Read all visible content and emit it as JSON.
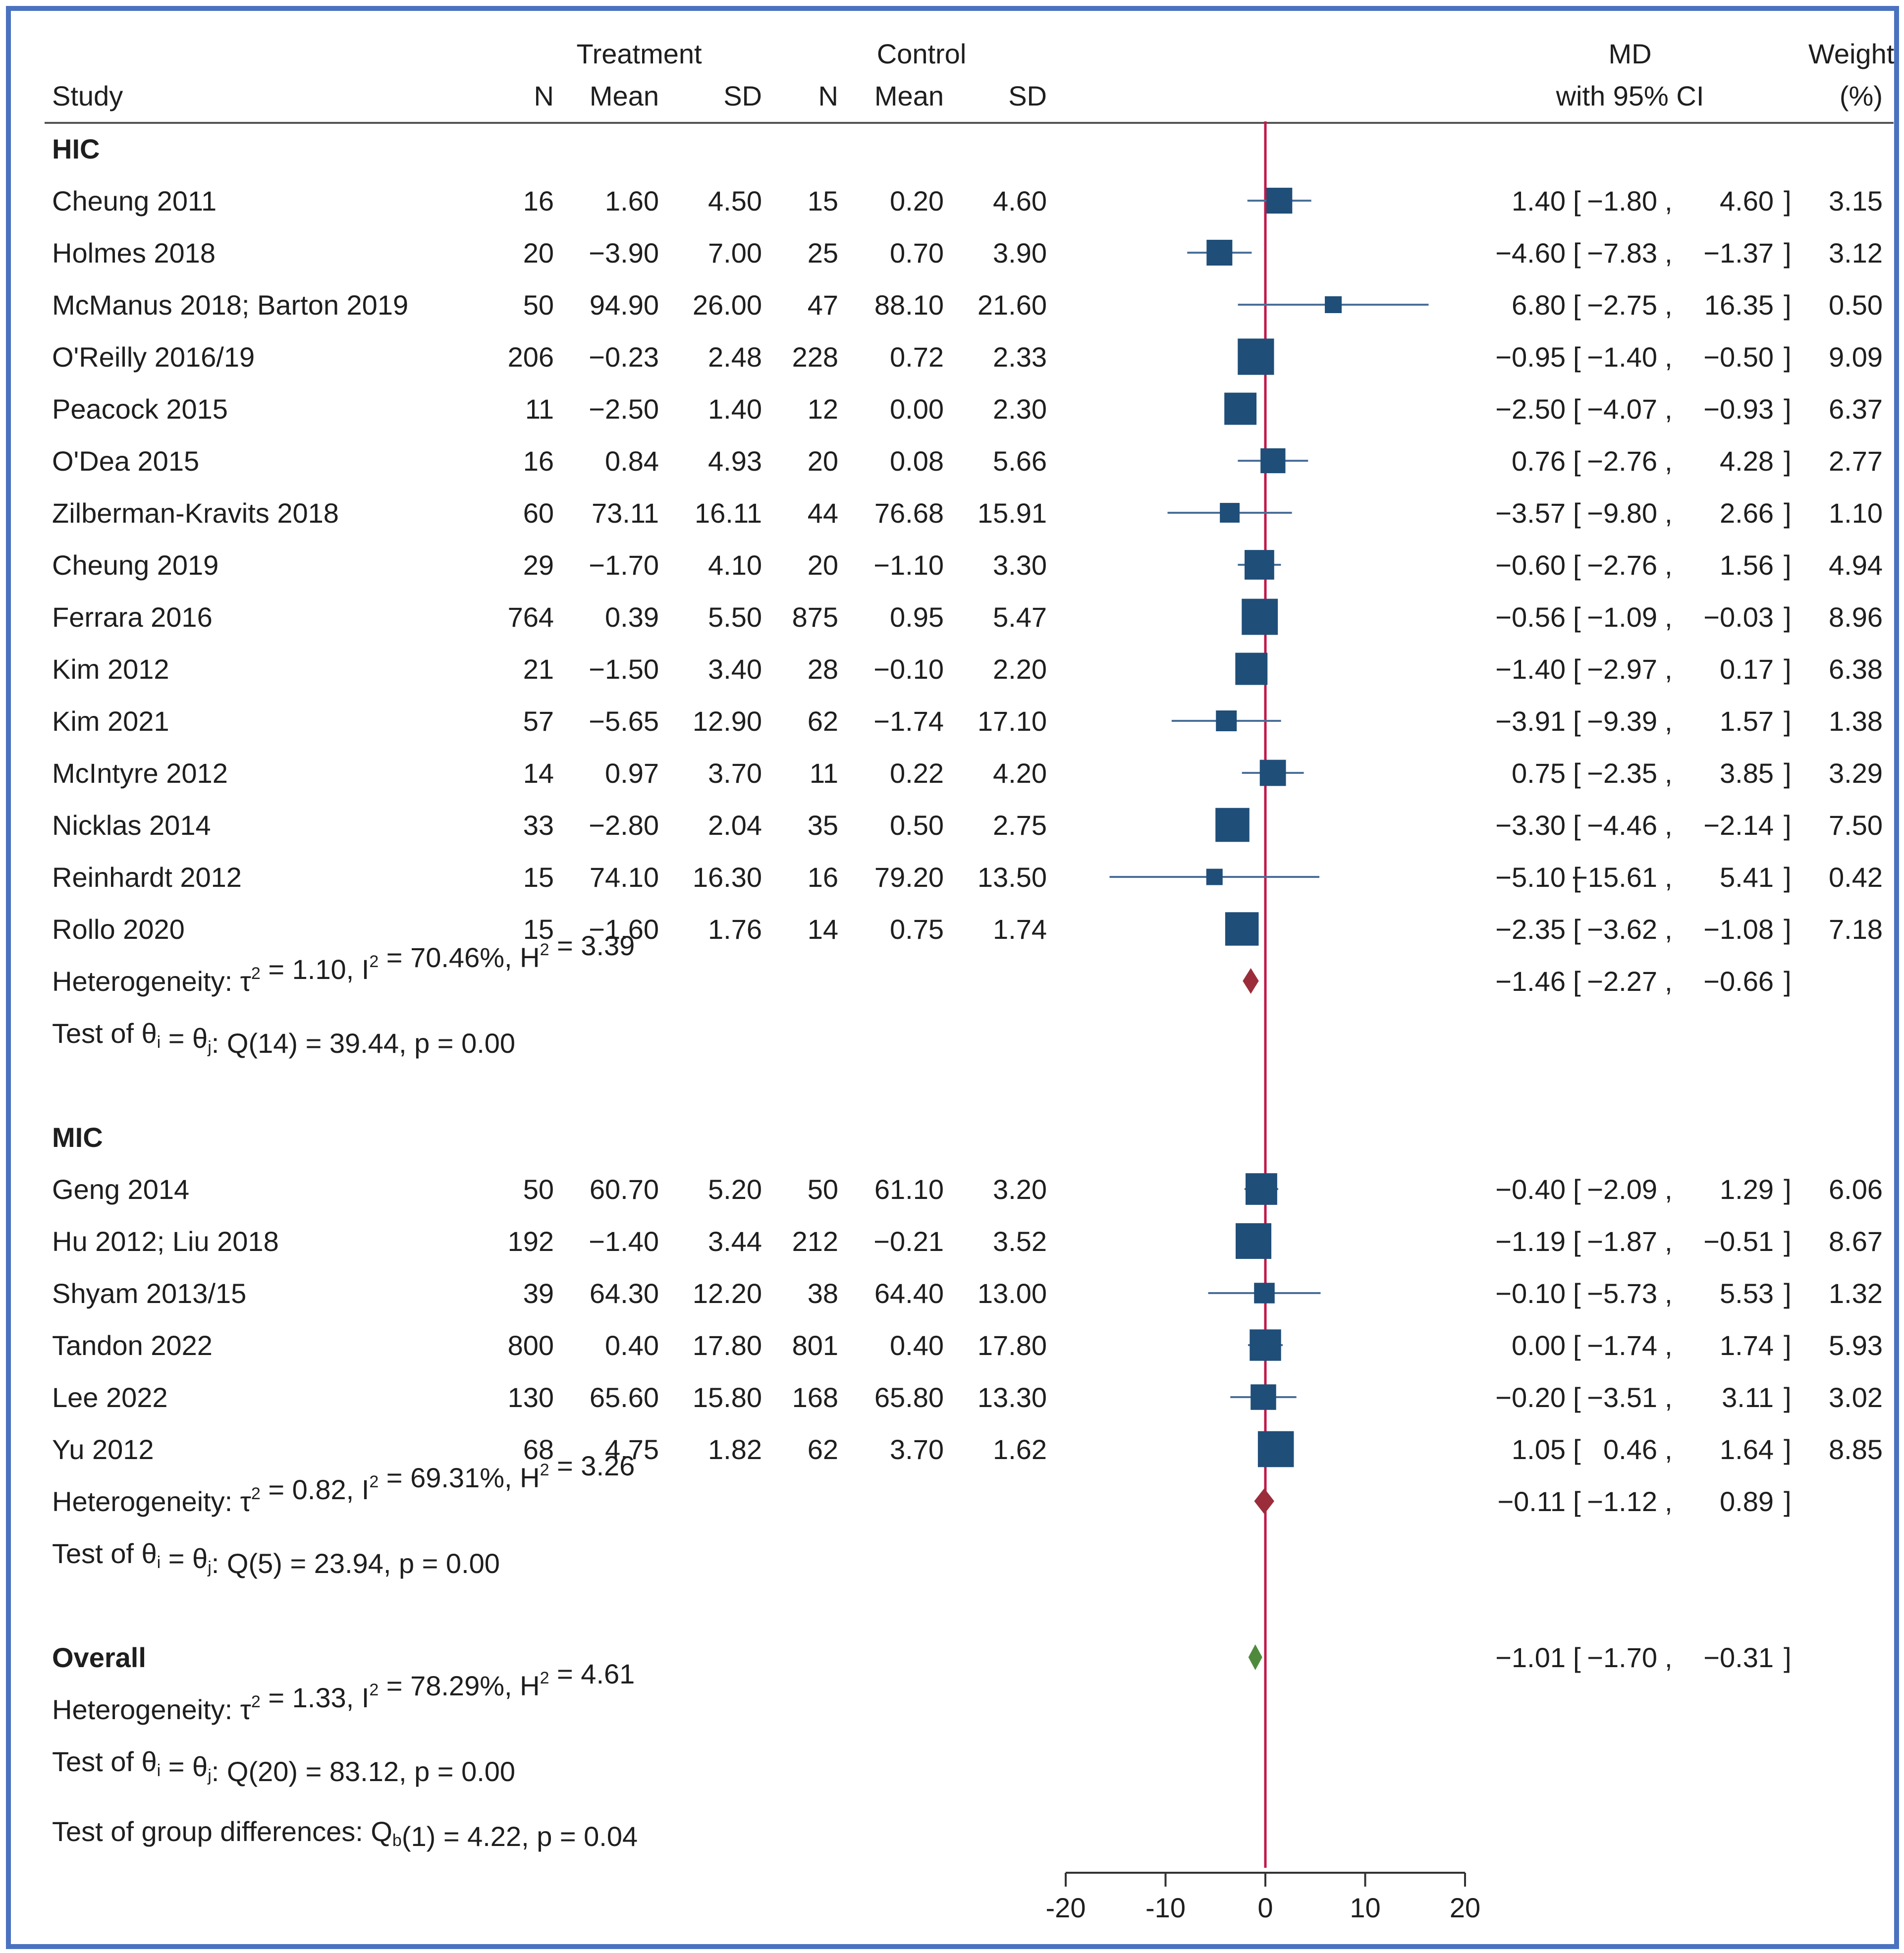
{
  "chart_data": {
    "type": "forest",
    "headers": {
      "study": "Study",
      "treatment": "Treatment",
      "control": "Control",
      "n": "N",
      "mean": "Mean",
      "sd": "SD",
      "md": "MD",
      "ci": "with 95% CI",
      "weight_line1": "Weight",
      "weight_line2": "(%)"
    },
    "groups": [
      {
        "name": "HIC",
        "studies": [
          {
            "study": "Cheung  2011",
            "n_t": "16",
            "mean_t": "1.60",
            "sd_t": "4.50",
            "n_c": "15",
            "mean_c": "0.20",
            "sd_c": "4.60",
            "md": 1.4,
            "lo": -1.8,
            "hi": 4.6,
            "md_text": "1.40",
            "lo_text": "−1.80",
            "hi_text": "4.60",
            "weight": "3.15"
          },
          {
            "study": "Holmes  2018",
            "n_t": "20",
            "mean_t": "−3.90",
            "sd_t": "7.00",
            "n_c": "25",
            "mean_c": "0.70",
            "sd_c": "3.90",
            "md": -4.6,
            "lo": -7.83,
            "hi": -1.37,
            "md_text": "−4.60",
            "lo_text": "−7.83",
            "hi_text": "−1.37",
            "weight": "3.12"
          },
          {
            "study": "McManus  2018; Barton  2019",
            "n_t": "50",
            "mean_t": "94.90",
            "sd_t": "26.00",
            "n_c": "47",
            "mean_c": "88.10",
            "sd_c": "21.60",
            "md": 6.8,
            "lo": -2.75,
            "hi": 16.35,
            "md_text": "6.80",
            "lo_text": "−2.75",
            "hi_text": "16.35",
            "weight": "0.50"
          },
          {
            "study": "O'Reilly 2016/19",
            "n_t": "206",
            "mean_t": "−0.23",
            "sd_t": "2.48",
            "n_c": "228",
            "mean_c": "0.72",
            "sd_c": "2.33",
            "md": -0.95,
            "lo": -1.4,
            "hi": -0.5,
            "md_text": "−0.95",
            "lo_text": "−1.40",
            "hi_text": "−0.50",
            "weight": "9.09"
          },
          {
            "study": "Peacock 2015",
            "n_t": "11",
            "mean_t": "−2.50",
            "sd_t": "1.40",
            "n_c": "12",
            "mean_c": "0.00",
            "sd_c": "2.30",
            "md": -2.5,
            "lo": -4.07,
            "hi": -0.93,
            "md_text": "−2.50",
            "lo_text": "−4.07",
            "hi_text": "−0.93",
            "weight": "6.37"
          },
          {
            "study": "O'Dea  2015",
            "n_t": "16",
            "mean_t": "0.84",
            "sd_t": "4.93",
            "n_c": "20",
            "mean_c": "0.08",
            "sd_c": "5.66",
            "md": 0.76,
            "lo": -2.76,
            "hi": 4.28,
            "md_text": "0.76",
            "lo_text": "−2.76",
            "hi_text": "4.28",
            "weight": "2.77"
          },
          {
            "study": "Zilberman-Kravits  2018",
            "n_t": "60",
            "mean_t": "73.11",
            "sd_t": "16.11",
            "n_c": "44",
            "mean_c": "76.68",
            "sd_c": "15.91",
            "md": -3.57,
            "lo": -9.8,
            "hi": 2.66,
            "md_text": "−3.57",
            "lo_text": "−9.80",
            "hi_text": "2.66",
            "weight": "1.10"
          },
          {
            "study": "Cheung 2019",
            "n_t": "29",
            "mean_t": "−1.70",
            "sd_t": "4.10",
            "n_c": "20",
            "mean_c": "−1.10",
            "sd_c": "3.30",
            "md": -0.6,
            "lo": -2.76,
            "hi": 1.56,
            "md_text": "−0.60",
            "lo_text": "−2.76",
            "hi_text": "1.56",
            "weight": "4.94"
          },
          {
            "study": "Ferrara 2016",
            "n_t": "764",
            "mean_t": "0.39",
            "sd_t": "5.50",
            "n_c": "875",
            "mean_c": "0.95",
            "sd_c": "5.47",
            "md": -0.56,
            "lo": -1.09,
            "hi": -0.03,
            "md_text": "−0.56",
            "lo_text": "−1.09",
            "hi_text": "−0.03",
            "weight": "8.96"
          },
          {
            "study": "Kim 2012",
            "n_t": "21",
            "mean_t": "−1.50",
            "sd_t": "3.40",
            "n_c": "28",
            "mean_c": "−0.10",
            "sd_c": "2.20",
            "md": -1.4,
            "lo": -2.97,
            "hi": 0.17,
            "md_text": "−1.40",
            "lo_text": "−2.97",
            "hi_text": "0.17",
            "weight": "6.38"
          },
          {
            "study": "Kim 2021",
            "n_t": "57",
            "mean_t": "−5.65",
            "sd_t": "12.90",
            "n_c": "62",
            "mean_c": "−1.74",
            "sd_c": "17.10",
            "md": -3.91,
            "lo": -9.39,
            "hi": 1.57,
            "md_text": "−3.91",
            "lo_text": "−9.39",
            "hi_text": "1.57",
            "weight": "1.38"
          },
          {
            "study": "McIntyre 2012",
            "n_t": "14",
            "mean_t": "0.97",
            "sd_t": "3.70",
            "n_c": "11",
            "mean_c": "0.22",
            "sd_c": "4.20",
            "md": 0.75,
            "lo": -2.35,
            "hi": 3.85,
            "md_text": "0.75",
            "lo_text": "−2.35",
            "hi_text": "3.85",
            "weight": "3.29"
          },
          {
            "study": "Nicklas  2014",
            "n_t": "33",
            "mean_t": "−2.80",
            "sd_t": "2.04",
            "n_c": "35",
            "mean_c": "0.50",
            "sd_c": "2.75",
            "md": -3.3,
            "lo": -4.46,
            "hi": -2.14,
            "md_text": "−3.30",
            "lo_text": "−4.46",
            "hi_text": "−2.14",
            "weight": "7.50"
          },
          {
            "study": "Reinhardt  2012",
            "n_t": "15",
            "mean_t": "74.10",
            "sd_t": "16.30",
            "n_c": "16",
            "mean_c": "79.20",
            "sd_c": "13.50",
            "md": -5.1,
            "lo": -15.61,
            "hi": 5.41,
            "md_text": "−5.10",
            "lo_text": "−15.61",
            "hi_text": "5.41",
            "weight": "0.42"
          },
          {
            "study": "Rollo 2020",
            "n_t": "15",
            "mean_t": "−1.60",
            "sd_t": "1.76",
            "n_c": "14",
            "mean_c": "0.75",
            "sd_c": "1.74",
            "md": -2.35,
            "lo": -3.62,
            "hi": -1.08,
            "md_text": "−2.35",
            "lo_text": "−3.62",
            "hi_text": "−1.08",
            "weight": "7.18"
          }
        ],
        "summary": {
          "md": -1.46,
          "lo": -2.27,
          "hi": -0.66,
          "md_text": "−1.46",
          "lo_text": "−2.27",
          "hi_text": "−0.66",
          "color": "#9b2d3a"
        },
        "heterogeneity": {
          "prefix": "Heterogeneity: τ",
          "sup1": "2",
          "mid": " = 1.10, I",
          "sup2": "2",
          "mid2": " = 70.46%, H",
          "sup3": "2",
          "end": " = 3.39"
        },
        "test": {
          "prefix": "Test of θ",
          "sub1": "i",
          "mid": " = θ",
          "sub2": "j",
          "end": ": Q(14) = 39.44, p = 0.00"
        }
      },
      {
        "name": "MIC",
        "studies": [
          {
            "study": "Geng 2014",
            "n_t": "50",
            "mean_t": "60.70",
            "sd_t": "5.20",
            "n_c": "50",
            "mean_c": "61.10",
            "sd_c": "3.20",
            "md": -0.4,
            "lo": -2.09,
            "hi": 1.29,
            "md_text": "−0.40",
            "lo_text": "−2.09",
            "hi_text": "1.29",
            "weight": "6.06"
          },
          {
            "study": "Hu 2012; Liu  2018",
            "n_t": "192",
            "mean_t": "−1.40",
            "sd_t": "3.44",
            "n_c": "212",
            "mean_c": "−0.21",
            "sd_c": "3.52",
            "md": -1.19,
            "lo": -1.87,
            "hi": -0.51,
            "md_text": "−1.19",
            "lo_text": "−1.87",
            "hi_text": "−0.51",
            "weight": "8.67"
          },
          {
            "study": "Shyam  2013/15",
            "n_t": "39",
            "mean_t": "64.30",
            "sd_t": "12.20",
            "n_c": "38",
            "mean_c": "64.40",
            "sd_c": "13.00",
            "md": -0.1,
            "lo": -5.73,
            "hi": 5.53,
            "md_text": "−0.10",
            "lo_text": "−5.73",
            "hi_text": "5.53",
            "weight": "1.32"
          },
          {
            "study": "Tandon 2022",
            "n_t": "800",
            "mean_t": "0.40",
            "sd_t": "17.80",
            "n_c": "801",
            "mean_c": "0.40",
            "sd_c": "17.80",
            "md": 0.0,
            "lo": -1.74,
            "hi": 1.74,
            "md_text": "0.00",
            "lo_text": "−1.74",
            "hi_text": "1.74",
            "weight": "5.93"
          },
          {
            "study": "Lee 2022",
            "n_t": "130",
            "mean_t": "65.60",
            "sd_t": "15.80",
            "n_c": "168",
            "mean_c": "65.80",
            "sd_c": "13.30",
            "md": -0.2,
            "lo": -3.51,
            "hi": 3.11,
            "md_text": "−0.20",
            "lo_text": "−3.51",
            "hi_text": "3.11",
            "weight": "3.02"
          },
          {
            "study": "Yu  2012",
            "n_t": "68",
            "mean_t": "4.75",
            "sd_t": "1.82",
            "n_c": "62",
            "mean_c": "3.70",
            "sd_c": "1.62",
            "md": 1.05,
            "lo": 0.46,
            "hi": 1.64,
            "md_text": "1.05",
            "lo_text": "0.46",
            "hi_text": "1.64",
            "weight": "8.85"
          }
        ],
        "summary": {
          "md": -0.11,
          "lo": -1.12,
          "hi": 0.89,
          "md_text": "−0.11",
          "lo_text": "−1.12",
          "hi_text": "0.89",
          "color": "#9b2d3a"
        },
        "heterogeneity": {
          "prefix": "Heterogeneity: τ",
          "sup1": "2",
          "mid": " = 0.82, I",
          "sup2": "2",
          "mid2": " = 69.31%, H",
          "sup3": "2",
          "end": " = 3.26"
        },
        "test": {
          "prefix": "Test of θ",
          "sub1": "i",
          "mid": " = θ",
          "sub2": "j",
          "end": ": Q(5) = 23.94, p = 0.00"
        }
      }
    ],
    "overall": {
      "label": "Overall",
      "md": -1.01,
      "lo": -1.7,
      "hi": -0.31,
      "md_text": "−1.01",
      "lo_text": "−1.70",
      "hi_text": "−0.31",
      "color": "#4f8a3c",
      "heterogeneity": {
        "prefix": "Heterogeneity: τ",
        "sup1": "2",
        "mid": " = 1.33, I",
        "sup2": "2",
        "mid2": " = 78.29%, H",
        "sup3": "2",
        "end": " = 4.61"
      },
      "test": {
        "prefix": "Test of θ",
        "sub1": "i",
        "mid": " = θ",
        "sub2": "j",
        "end": ": Q(20) = 83.12, p = 0.00"
      },
      "group_diff": {
        "prefix": "Test of group differences: Q",
        "sub": "b",
        "end": "(1) = 4.22, p = 0.04"
      }
    },
    "x_axis": {
      "range": [
        -20,
        20
      ],
      "ticks": [
        -20,
        -10,
        0,
        10,
        20
      ],
      "tick_labels": [
        "-20",
        "-10",
        "0",
        "10",
        "20"
      ],
      "reference_line": 0
    },
    "colors": {
      "marker": "#1f4e79",
      "ci_line": "#4a6f98",
      "reference_line": "#c0184a",
      "frame": "#4a72c0",
      "text": "#1e1e1e"
    }
  }
}
